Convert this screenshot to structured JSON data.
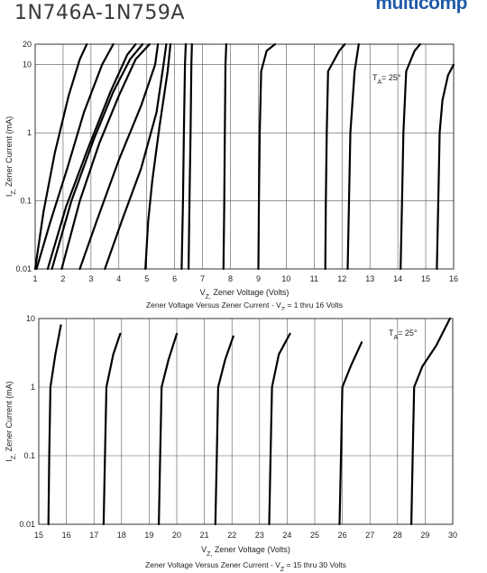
{
  "header": {
    "title": "1N746A-1N759A",
    "brand": "multicomp"
  },
  "chart_data": [
    {
      "type": "line",
      "title": "",
      "caption": "Zener Voltage Versus Zener Current - V",
      "caption_sub": "Z",
      "caption_tail": " = 1 thru 16 Volts",
      "xlabel": "V",
      "xlabel_sub": "Z,",
      "xlabel_tail": "  Zener Voltage (Volts)",
      "ylabel": "I",
      "ylabel_sub": "Z,",
      "ylabel_tail": "  Zener Current (mA)",
      "annotation": "T",
      "annotation_sub": "A",
      "annotation_tail": "= 25°",
      "xlim": [
        1,
        16
      ],
      "ylim": [
        0.01,
        20
      ],
      "yscale": "log",
      "grid": true,
      "x_ticks": [
        1,
        2,
        3,
        4,
        5,
        6,
        7,
        8,
        9,
        10,
        11,
        12,
        13,
        14,
        15,
        16
      ],
      "x_tick_labels": [
        "1",
        "2",
        "3",
        "4",
        "5",
        "6",
        "7",
        "8",
        "9",
        "10",
        "11",
        "12",
        "13",
        "14",
        "15",
        "16"
      ],
      "y_ticks": [
        0.01,
        0.1,
        1,
        10,
        20
      ],
      "y_tick_labels": [
        "0.01",
        "0.1",
        "1",
        "10",
        "20"
      ],
      "series": [
        {
          "x": [
            1.0,
            1.3,
            1.7,
            2.2,
            2.6,
            2.85
          ],
          "y": [
            0.01,
            0.07,
            0.5,
            3.5,
            12,
            20
          ]
        },
        {
          "x": [
            1.05,
            1.55,
            2.15,
            2.75,
            3.4,
            3.8
          ],
          "y": [
            0.01,
            0.05,
            0.3,
            2,
            10,
            20
          ]
        },
        {
          "x": [
            1.45,
            2.1,
            2.9,
            3.7,
            4.3,
            4.6
          ],
          "y": [
            0.01,
            0.08,
            0.6,
            4,
            14,
            20
          ]
        },
        {
          "x": [
            1.6,
            2.3,
            3.1,
            3.8,
            4.4,
            4.85
          ],
          "y": [
            0.01,
            0.1,
            0.8,
            4,
            12,
            20
          ]
        },
        {
          "x": [
            1.95,
            2.6,
            3.3,
            4.0,
            4.6,
            5.1
          ],
          "y": [
            0.01,
            0.1,
            0.7,
            3.5,
            12,
            20
          ]
        },
        {
          "x": [
            2.6,
            3.2,
            4.0,
            4.8,
            5.3,
            5.4
          ],
          "y": [
            0.01,
            0.05,
            0.4,
            2.5,
            10,
            20
          ]
        },
        {
          "x": [
            3.5,
            4.1,
            4.8,
            5.35,
            5.6,
            5.7
          ],
          "y": [
            0.01,
            0.05,
            0.3,
            2,
            10,
            20
          ]
        },
        {
          "x": [
            4.95,
            5.05,
            5.2,
            5.45,
            5.75,
            5.85
          ],
          "y": [
            0.01,
            0.05,
            0.2,
            1.2,
            8,
            20
          ]
        },
        {
          "x": [
            6.25,
            6.3,
            6.33,
            6.37,
            6.4
          ],
          "y": [
            0.01,
            0.1,
            1,
            10,
            20
          ]
        },
        {
          "x": [
            6.5,
            6.53,
            6.57,
            6.6,
            6.62
          ],
          "y": [
            0.01,
            0.1,
            1,
            10,
            20
          ]
        },
        {
          "x": [
            7.75,
            7.78,
            7.8,
            7.82,
            7.85
          ],
          "y": [
            0.01,
            0.1,
            1,
            10,
            20
          ]
        },
        {
          "x": [
            9.0,
            9.02,
            9.05,
            9.1,
            9.3,
            9.6
          ],
          "y": [
            0.01,
            0.1,
            1,
            8,
            16,
            20
          ]
        },
        {
          "x": [
            11.4,
            11.42,
            11.45,
            11.5,
            11.9,
            12.1
          ],
          "y": [
            0.01,
            0.1,
            1,
            8,
            16,
            20
          ]
        },
        {
          "x": [
            12.2,
            12.25,
            12.3,
            12.45,
            12.6
          ],
          "y": [
            0.01,
            0.1,
            1,
            8,
            20
          ]
        },
        {
          "x": [
            14.1,
            14.15,
            14.2,
            14.3,
            14.6,
            14.8
          ],
          "y": [
            0.01,
            0.1,
            1,
            8,
            16,
            20
          ]
        },
        {
          "x": [
            15.4,
            15.45,
            15.5,
            15.6,
            15.8,
            16.0
          ],
          "y": [
            0.01,
            0.1,
            1,
            3,
            7,
            10
          ]
        }
      ]
    },
    {
      "type": "line",
      "title": "",
      "caption": "Zener Voltage Versus Zener Current - V",
      "caption_sub": "Z",
      "caption_tail": " = 15 thru 30 Volts",
      "xlabel": "V",
      "xlabel_sub": "Z,",
      "xlabel_tail": "  Zener Voltage (Volts)",
      "ylabel": "I",
      "ylabel_sub": "Z,",
      "ylabel_tail": "  Zener Current (mA)",
      "annotation": "T",
      "annotation_sub": "A",
      "annotation_tail": "= 25°",
      "xlim": [
        15,
        30
      ],
      "ylim": [
        0.01,
        10
      ],
      "yscale": "log",
      "grid": true,
      "x_ticks": [
        15,
        16,
        17,
        18,
        19,
        20,
        21,
        22,
        23,
        24,
        25,
        26,
        27,
        28,
        29,
        30
      ],
      "x_tick_labels": [
        "15",
        "16",
        "17",
        "18",
        "19",
        "20",
        "21",
        "22",
        "23",
        "24",
        "25",
        "26",
        "27",
        "28",
        "29",
        "30"
      ],
      "y_ticks": [
        0.01,
        0.1,
        1,
        10
      ],
      "y_tick_labels": [
        "0.01",
        "0.1",
        "1",
        "10"
      ],
      "series": [
        {
          "x": [
            15.35,
            15.38,
            15.42,
            15.6,
            15.8
          ],
          "y": [
            0.01,
            0.1,
            1,
            3,
            8
          ]
        },
        {
          "x": [
            17.35,
            17.4,
            17.45,
            17.7,
            17.95
          ],
          "y": [
            0.01,
            0.1,
            1,
            3,
            6
          ]
        },
        {
          "x": [
            19.35,
            19.4,
            19.45,
            19.7,
            20.0
          ],
          "y": [
            0.01,
            0.1,
            1,
            2.5,
            6
          ]
        },
        {
          "x": [
            21.4,
            21.45,
            21.5,
            21.75,
            22.05
          ],
          "y": [
            0.01,
            0.1,
            1,
            2.5,
            5.5
          ]
        },
        {
          "x": [
            23.35,
            23.4,
            23.45,
            23.7,
            24.1
          ],
          "y": [
            0.01,
            0.1,
            1,
            3,
            6
          ]
        },
        {
          "x": [
            25.9,
            25.95,
            26.0,
            26.3,
            26.7
          ],
          "y": [
            0.01,
            0.1,
            1,
            2,
            4.5
          ]
        },
        {
          "x": [
            28.5,
            28.55,
            28.6,
            28.9,
            29.4,
            29.9
          ],
          "y": [
            0.01,
            0.1,
            1,
            2,
            4,
            10
          ]
        }
      ]
    }
  ]
}
